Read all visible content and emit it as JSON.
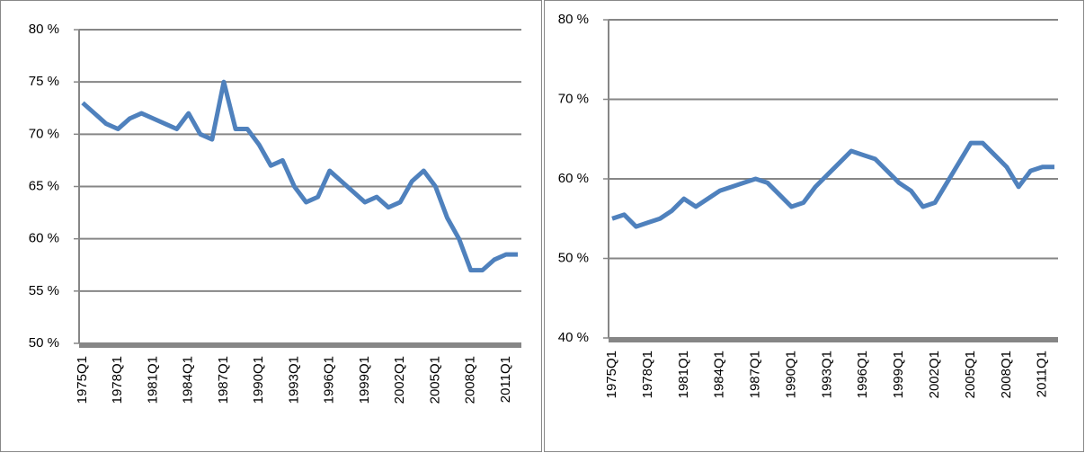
{
  "chart_data": [
    {
      "type": "line",
      "categories": [
        "1975Q1",
        null,
        null,
        "1978Q1",
        null,
        null,
        "1981Q1",
        null,
        null,
        "1984Q1",
        null,
        null,
        "1987Q1",
        null,
        null,
        "1990Q1",
        null,
        null,
        "1993Q1",
        null,
        null,
        "1996Q1",
        null,
        null,
        "1999Q1",
        null,
        null,
        "2002Q1",
        null,
        null,
        "2005Q1",
        null,
        null,
        "2008Q1",
        null,
        null,
        "2011Q1",
        null
      ],
      "series": [
        {
          "color": "#4f81bd",
          "values": [
            73,
            72,
            71,
            70.5,
            71.5,
            72,
            71.5,
            71,
            70.5,
            72,
            70,
            69.5,
            75,
            70.5,
            70.5,
            69,
            67,
            67.5,
            65,
            63.5,
            64,
            66.5,
            65.5,
            64.5,
            63.5,
            64,
            63,
            63.5,
            65.5,
            66.5,
            65,
            62,
            60,
            57,
            57,
            58,
            58.5,
            58.5
          ]
        }
      ],
      "ylim": [
        50,
        80
      ],
      "yticks": [
        {
          "value": 50,
          "label": "50 %"
        },
        {
          "value": 55,
          "label": "55 %"
        },
        {
          "value": 60,
          "label": "60 %"
        },
        {
          "value": 65,
          "label": "65 %"
        },
        {
          "value": 70,
          "label": "70 %"
        },
        {
          "value": 75,
          "label": "75 %"
        },
        {
          "value": 80,
          "label": "80 %"
        }
      ],
      "grid": true
    },
    {
      "type": "line",
      "categories": [
        "1975Q1",
        null,
        null,
        "1978Q1",
        null,
        null,
        "1981Q1",
        null,
        null,
        "1984Q1",
        null,
        null,
        "1987Q1",
        null,
        null,
        "1990Q1",
        null,
        null,
        "1993Q1",
        null,
        null,
        "1996Q1",
        null,
        null,
        "1999Q1",
        null,
        null,
        "2002Q1",
        null,
        null,
        "2005Q1",
        null,
        null,
        "2008Q1",
        null,
        null,
        "2011Q1",
        null
      ],
      "series": [
        {
          "color": "#4f81bd",
          "values": [
            55,
            55.5,
            54,
            54.5,
            55,
            56,
            57.5,
            56.5,
            57.5,
            58.5,
            59,
            59.5,
            60,
            59.5,
            58,
            56.5,
            57,
            59,
            60.5,
            62,
            63.5,
            63,
            62.5,
            61,
            59.5,
            58.5,
            56.5,
            57,
            59.5,
            62,
            64.5,
            64.5,
            63,
            61.5,
            59,
            61,
            61.5,
            61.5
          ]
        }
      ],
      "ylim": [
        40,
        80
      ],
      "yticks": [
        {
          "value": 40,
          "label": "40 %"
        },
        {
          "value": 50,
          "label": "50 %"
        },
        {
          "value": 60,
          "label": "60 %"
        },
        {
          "value": 70,
          "label": "70 %"
        },
        {
          "value": 80,
          "label": "80 %"
        }
      ],
      "grid": true
    }
  ]
}
